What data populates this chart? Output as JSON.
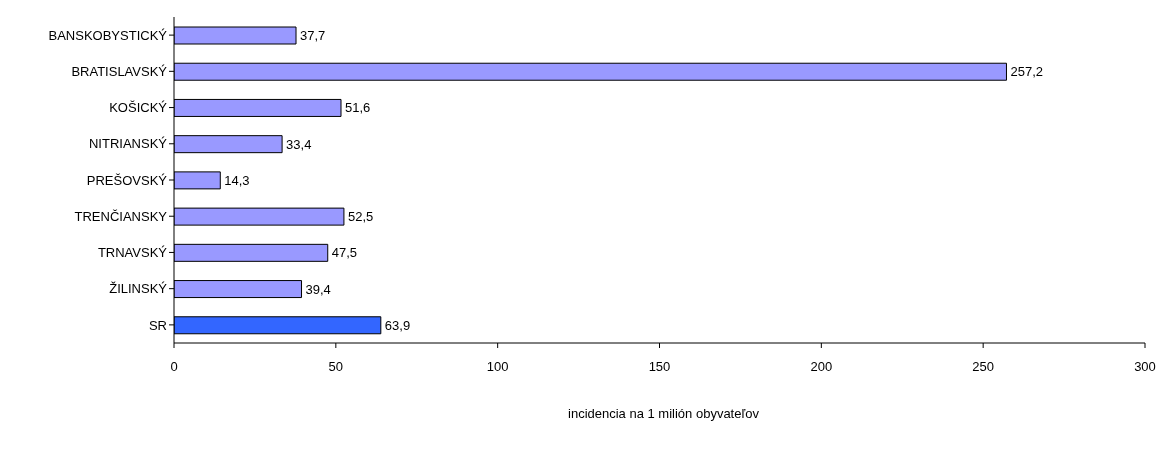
{
  "chart_data": {
    "type": "bar",
    "orientation": "horizontal",
    "xlabel": "incidencia na 1 milión obyvateľov",
    "categories": [
      "BANSKOBYSTICKÝ",
      "BRATISLAVSKÝ",
      "KOŠICKÝ",
      "NITRIANSKÝ",
      "PREŠOVSKÝ",
      "TRENČIANSKY",
      "TRNAVSKÝ",
      "ŽILINSKÝ",
      "SR"
    ],
    "values": [
      37.7,
      257.2,
      51.6,
      33.4,
      14.3,
      52.5,
      47.5,
      39.4,
      63.9
    ],
    "value_labels": [
      "37,7",
      "257,2",
      "51,6",
      "33,4",
      "14,3",
      "52,5",
      "47,5",
      "39,4",
      "63,9"
    ],
    "colors": [
      "#9999ff",
      "#9999ff",
      "#9999ff",
      "#9999ff",
      "#9999ff",
      "#9999ff",
      "#9999ff",
      "#9999ff",
      "#3366ff"
    ],
    "xlim": [
      0,
      300
    ],
    "xticks": [
      0,
      50,
      100,
      150,
      200,
      250,
      300
    ],
    "grid": false
  }
}
